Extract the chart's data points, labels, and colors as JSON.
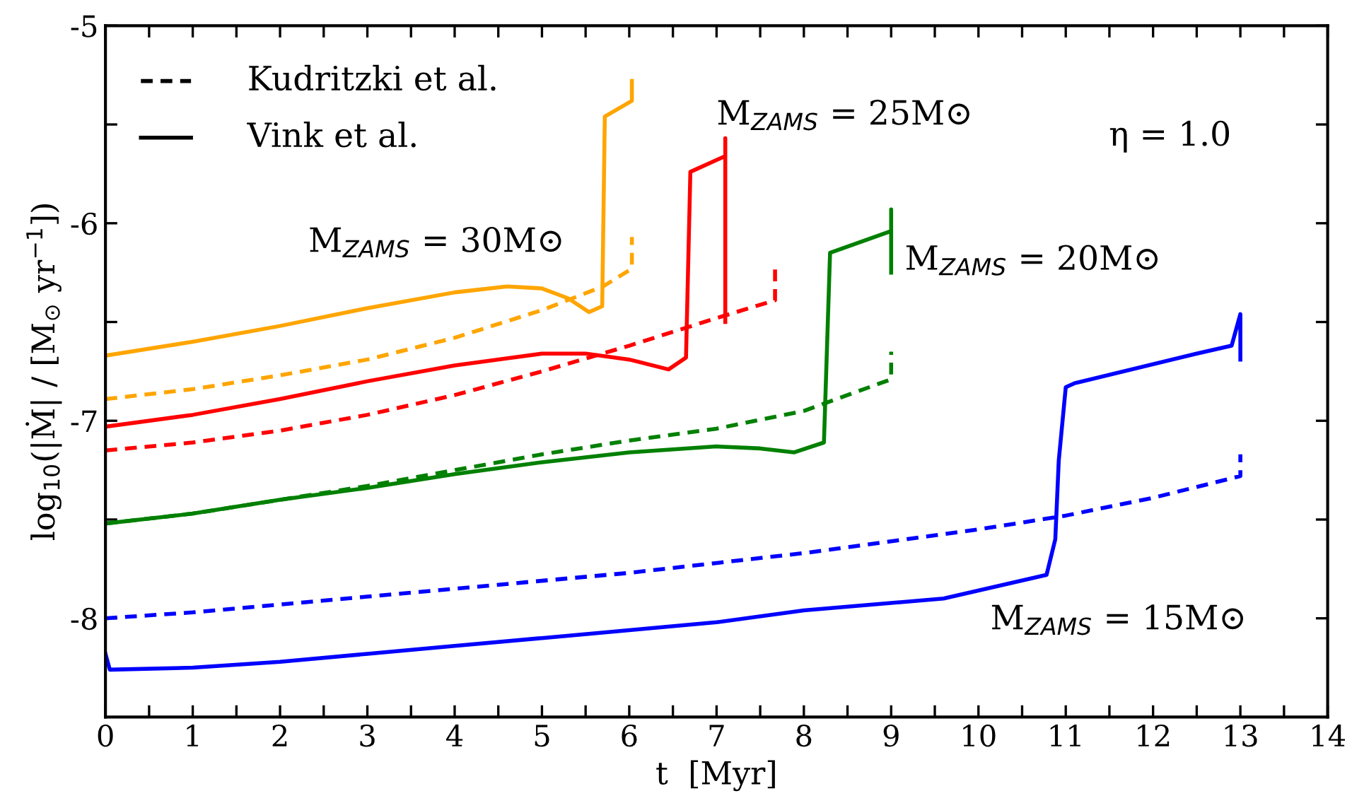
{
  "chart_data": {
    "type": "line",
    "xlabel": "t  [Myr]",
    "ylabel": "log$_{10}$(|Ṁ| / [M$_{⊙}$ yr$^{−1}$])",
    "xlim": [
      0,
      14
    ],
    "ylim": [
      -8.5,
      -5
    ],
    "xticks": [
      0,
      {
        "value": 0.5,
        "label": null
      },
      1,
      {
        "value": 1.5,
        "label": null
      },
      2,
      {
        "value": 2.5,
        "label": null
      },
      3,
      {
        "value": 3.5,
        "label": null
      },
      4,
      {
        "value": 4.5,
        "label": null
      },
      5,
      {
        "value": 5.5,
        "label": null
      },
      6,
      {
        "value": 6.5,
        "label": null
      },
      7,
      {
        "value": 7.5,
        "label": null
      },
      8,
      {
        "value": 8.5,
        "label": null
      },
      9,
      {
        "value": 9.5,
        "label": null
      },
      10,
      {
        "value": 10.5,
        "label": null
      },
      11,
      {
        "value": 11.5,
        "label": null
      },
      12,
      {
        "value": 12.5,
        "label": null
      },
      13,
      {
        "value": 13.5,
        "label": null
      },
      14
    ],
    "yticks": [
      -8,
      {
        "value": -7.5,
        "label": null
      },
      -7,
      {
        "value": -6.5,
        "label": null
      },
      -6,
      {
        "value": -5.5,
        "label": null
      },
      -5
    ],
    "grid": false,
    "series": [
      {
        "line_style": "dashed",
        "color": "#ffa500",
        "x": [
          0,
          1,
          2,
          3,
          4,
          5,
          5.7,
          6.03,
          6.03
        ],
        "values": [
          -6.89,
          -6.84,
          -6.77,
          -6.69,
          -6.58,
          -6.44,
          -6.32,
          -6.23,
          -6.07
        ]
      },
      {
        "line_style": "solid",
        "color": "#ffa500",
        "x": [
          0,
          1,
          2,
          3,
          4,
          4.6,
          5.0,
          5.3,
          5.54,
          5.69,
          5.72,
          6.03,
          6.03
        ],
        "values": [
          -6.67,
          -6.6,
          -6.52,
          -6.43,
          -6.35,
          -6.32,
          -6.33,
          -6.38,
          -6.45,
          -6.42,
          -5.46,
          -5.38,
          -5.28
        ]
      },
      {
        "line_style": "dashed",
        "color": "#ff0000",
        "x": [
          0,
          1,
          2,
          3,
          4,
          5,
          6,
          7,
          7.67,
          7.67
        ],
        "values": [
          -7.15,
          -7.11,
          -7.05,
          -6.97,
          -6.87,
          -6.75,
          -6.62,
          -6.48,
          -6.39,
          -6.23
        ]
      },
      {
        "line_style": "solid",
        "color": "#ff0000",
        "x": [
          0,
          1,
          2,
          3,
          4,
          5,
          5.5,
          6.0,
          6.45,
          6.65,
          6.7,
          7.1,
          7.1,
          7.1
        ],
        "values": [
          -7.03,
          -6.97,
          -6.89,
          -6.8,
          -6.72,
          -6.66,
          -6.66,
          -6.69,
          -6.74,
          -6.68,
          -5.74,
          -5.66,
          -5.57,
          -6.5
        ]
      },
      {
        "line_style": "dashed",
        "color": "#008000",
        "x": [
          0,
          1,
          2,
          3,
          4,
          5,
          6,
          7,
          8,
          9.0,
          9.0
        ],
        "values": [
          -7.52,
          -7.47,
          -7.4,
          -7.33,
          -7.25,
          -7.17,
          -7.1,
          -7.04,
          -6.95,
          -6.79,
          -6.65
        ]
      },
      {
        "line_style": "solid",
        "color": "#008000",
        "x": [
          0,
          1,
          2,
          3,
          4,
          5,
          6,
          7,
          7.5,
          7.89,
          8.23,
          8.3,
          9.0,
          9.0,
          9.0
        ],
        "values": [
          -7.52,
          -7.47,
          -7.4,
          -7.34,
          -7.27,
          -7.21,
          -7.16,
          -7.13,
          -7.14,
          -7.16,
          -7.11,
          -6.15,
          -6.04,
          -5.93,
          -6.25
        ]
      },
      {
        "line_style": "dashed",
        "color": "#0000ff",
        "x": [
          0,
          1,
          2,
          3,
          4,
          5,
          6,
          7,
          8,
          9,
          10,
          11,
          12,
          13,
          13
        ],
        "values": [
          -8.0,
          -7.97,
          -7.93,
          -7.89,
          -7.85,
          -7.81,
          -7.77,
          -7.72,
          -7.67,
          -7.61,
          -7.55,
          -7.48,
          -7.39,
          -7.28,
          -7.17
        ]
      },
      {
        "line_style": "solid",
        "color": "#0000ff",
        "x": [
          0,
          0.05,
          1,
          2,
          3,
          4,
          5,
          6,
          7,
          8,
          9.6,
          10.78,
          10.88,
          10.92,
          11.0,
          11.1,
          12.5,
          12.9,
          13.0,
          13.0
        ],
        "values": [
          -8.18,
          -8.26,
          -8.25,
          -8.22,
          -8.18,
          -8.14,
          -8.1,
          -8.06,
          -8.02,
          -7.96,
          -7.9,
          -7.78,
          -7.6,
          -7.2,
          -6.83,
          -6.81,
          -6.66,
          -6.62,
          -6.46,
          -6.69
        ]
      }
    ],
    "annotations": [
      "Kudritzki et al.",
      "Vink et al.",
      "M$_{ZAMS}$ = 30M⊙",
      "M$_{ZAMS}$ = 25M⊙",
      "M$_{ZAMS}$ = 20M⊙",
      "M$_{ZAMS}$ = 15M⊙",
      "η = 1.0"
    ]
  }
}
